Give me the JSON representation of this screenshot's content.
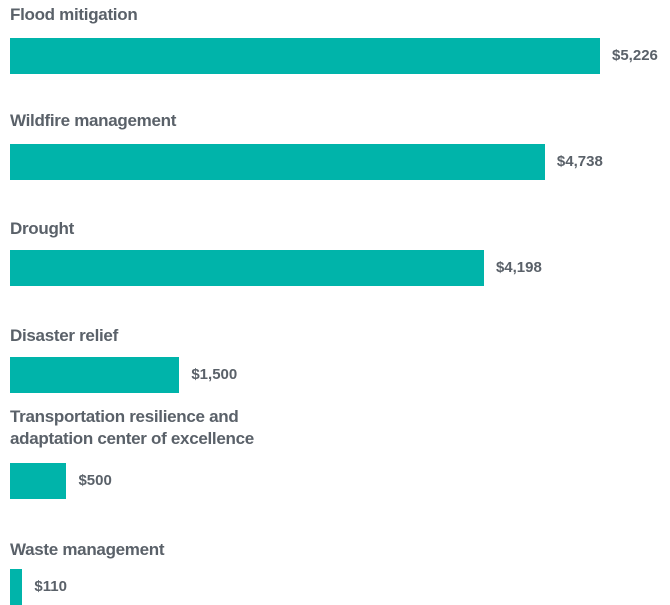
{
  "chart_data": {
    "type": "bar",
    "orientation": "horizontal",
    "categories": [
      "Flood mitigation",
      "Wildfire management",
      "Drought",
      "Disaster relief",
      "Transportation resilience and adaptation center of excellence",
      "Waste management"
    ],
    "values": [
      5226,
      4738,
      4198,
      1500,
      500,
      110
    ],
    "value_labels": [
      "$5,226",
      "$4,738",
      "$4,198",
      "$1,500",
      "$500",
      "$110"
    ],
    "color": "#00b4aa"
  }
}
